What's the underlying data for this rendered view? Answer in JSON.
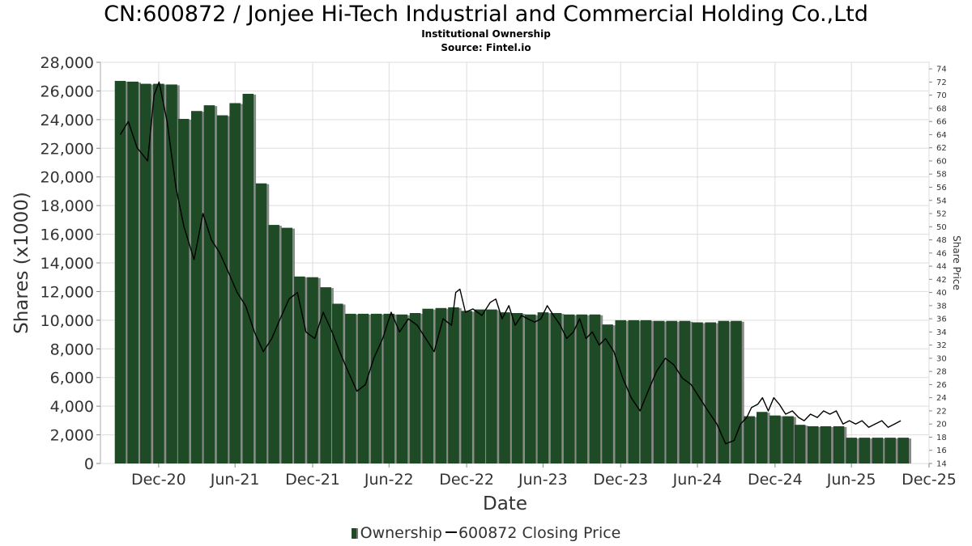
{
  "chart_data": {
    "type": "bar",
    "title": "CN:600872 / Jonjee Hi-Tech Industrial and Commercial Holding Co.,Ltd",
    "subtitle": "Institutional Ownership",
    "source": "Source: Fintel.io",
    "xlabel": "Date",
    "ylabel": "Shares (x1000)",
    "y2label": "Share Price",
    "ylim": [
      0,
      28000
    ],
    "y2lim": [
      14,
      75
    ],
    "xlim": [
      "2020-08-15",
      "2025-12-31"
    ],
    "grid": true,
    "legend_position": "bottom-center",
    "x_ticks": [
      {
        "date": "2020-12-31",
        "label": "Dec-20"
      },
      {
        "date": "2021-06-30",
        "label": "Jun-21"
      },
      {
        "date": "2021-12-31",
        "label": "Dec-21"
      },
      {
        "date": "2022-06-30",
        "label": "Jun-22"
      },
      {
        "date": "2022-12-31",
        "label": "Dec-22"
      },
      {
        "date": "2023-06-30",
        "label": "Jun-23"
      },
      {
        "date": "2023-12-31",
        "label": "Dec-23"
      },
      {
        "date": "2024-06-30",
        "label": "Jun-24"
      },
      {
        "date": "2024-12-31",
        "label": "Dec-24"
      },
      {
        "date": "2025-06-30",
        "label": "Jun-25"
      },
      {
        "date": "2025-12-31",
        "label": "Dec-25"
      }
    ],
    "y_ticks": [
      "0",
      "2,000",
      "4,000",
      "6,000",
      "8,000",
      "10,000",
      "12,000",
      "14,000",
      "16,000",
      "18,000",
      "20,000",
      "22,000",
      "24,000",
      "26,000",
      "28,000"
    ],
    "y_tick_values": [
      0,
      2000,
      4000,
      6000,
      8000,
      10000,
      12000,
      14000,
      16000,
      18000,
      20000,
      22000,
      24000,
      26000,
      28000
    ],
    "y2_ticks": [
      14,
      16,
      18,
      20,
      22,
      24,
      26,
      28,
      30,
      32,
      34,
      36,
      38,
      40,
      42,
      44,
      46,
      48,
      50,
      52,
      54,
      56,
      58,
      60,
      62,
      64,
      66,
      68,
      70,
      72,
      74
    ],
    "series": [
      {
        "name": "Ownership",
        "color": "#1e4a26",
        "bar_width_days": 26,
        "points": [
          [
            "2020-10-01",
            26700
          ],
          [
            "2020-10-31",
            26650
          ],
          [
            "2020-11-30",
            26500
          ],
          [
            "2020-12-31",
            26500
          ],
          [
            "2021-01-31",
            26450
          ],
          [
            "2021-02-28",
            24050
          ],
          [
            "2021-03-31",
            24600
          ],
          [
            "2021-04-30",
            25000
          ],
          [
            "2021-05-31",
            24300
          ],
          [
            "2021-06-30",
            25150
          ],
          [
            "2021-07-31",
            25800
          ],
          [
            "2021-08-31",
            19550
          ],
          [
            "2021-09-30",
            16650
          ],
          [
            "2021-10-31",
            16450
          ],
          [
            "2021-11-30",
            13050
          ],
          [
            "2021-12-31",
            13000
          ],
          [
            "2022-01-31",
            12300
          ],
          [
            "2022-02-28",
            11150
          ],
          [
            "2022-03-31",
            10450
          ],
          [
            "2022-04-30",
            10450
          ],
          [
            "2022-05-31",
            10450
          ],
          [
            "2022-06-30",
            10450
          ],
          [
            "2022-07-31",
            10400
          ],
          [
            "2022-08-31",
            10500
          ],
          [
            "2022-09-30",
            10800
          ],
          [
            "2022-10-31",
            10850
          ],
          [
            "2022-11-30",
            10900
          ],
          [
            "2022-12-31",
            10650
          ],
          [
            "2023-01-31",
            10750
          ],
          [
            "2023-02-28",
            10750
          ],
          [
            "2023-03-31",
            10550
          ],
          [
            "2023-04-30",
            10500
          ],
          [
            "2023-05-31",
            10400
          ],
          [
            "2023-06-30",
            10550
          ],
          [
            "2023-07-31",
            10500
          ],
          [
            "2023-08-31",
            10400
          ],
          [
            "2023-09-30",
            10400
          ],
          [
            "2023-10-31",
            10400
          ],
          [
            "2023-11-30",
            9700
          ],
          [
            "2023-12-31",
            10000
          ],
          [
            "2024-01-31",
            10000
          ],
          [
            "2024-02-29",
            10000
          ],
          [
            "2024-03-31",
            9950
          ],
          [
            "2024-04-30",
            9950
          ],
          [
            "2024-05-31",
            9950
          ],
          [
            "2024-06-30",
            9850
          ],
          [
            "2024-07-31",
            9850
          ],
          [
            "2024-08-31",
            9950
          ],
          [
            "2024-09-30",
            9950
          ],
          [
            "2024-10-31",
            3300
          ],
          [
            "2024-11-30",
            3600
          ],
          [
            "2024-12-31",
            3350
          ],
          [
            "2025-01-31",
            3300
          ],
          [
            "2025-02-28",
            2700
          ],
          [
            "2025-03-31",
            2600
          ],
          [
            "2025-04-30",
            2600
          ],
          [
            "2025-05-31",
            2600
          ],
          [
            "2025-06-30",
            1800
          ],
          [
            "2025-07-31",
            1800
          ],
          [
            "2025-08-31",
            1800
          ],
          [
            "2025-09-30",
            1800
          ],
          [
            "2025-10-31",
            1800
          ]
        ]
      },
      {
        "name": "600872 Closing Price",
        "color": "#000000",
        "axis": "right",
        "points": [
          [
            "2020-10-01",
            64
          ],
          [
            "2020-10-20",
            66
          ],
          [
            "2020-11-10",
            62
          ],
          [
            "2020-12-05",
            60
          ],
          [
            "2020-12-20",
            70
          ],
          [
            "2021-01-01",
            72
          ],
          [
            "2021-01-20",
            66
          ],
          [
            "2021-02-10",
            56
          ],
          [
            "2021-03-01",
            50
          ],
          [
            "2021-03-25",
            45
          ],
          [
            "2021-04-15",
            52
          ],
          [
            "2021-05-05",
            48
          ],
          [
            "2021-05-25",
            46
          ],
          [
            "2021-06-15",
            43
          ],
          [
            "2021-07-05",
            40
          ],
          [
            "2021-07-25",
            38
          ],
          [
            "2021-08-15",
            34
          ],
          [
            "2021-09-05",
            31
          ],
          [
            "2021-09-25",
            33
          ],
          [
            "2021-10-15",
            36
          ],
          [
            "2021-11-05",
            39
          ],
          [
            "2021-11-25",
            40
          ],
          [
            "2021-12-15",
            34
          ],
          [
            "2022-01-05",
            33
          ],
          [
            "2022-01-25",
            37
          ],
          [
            "2022-02-15",
            34
          ],
          [
            "2022-03-05",
            31
          ],
          [
            "2022-03-25",
            28
          ],
          [
            "2022-04-15",
            25
          ],
          [
            "2022-05-05",
            26
          ],
          [
            "2022-05-25",
            30
          ],
          [
            "2022-06-15",
            33
          ],
          [
            "2022-07-05",
            37
          ],
          [
            "2022-07-25",
            34
          ],
          [
            "2022-08-15",
            36
          ],
          [
            "2022-09-05",
            35
          ],
          [
            "2022-09-25",
            33
          ],
          [
            "2022-10-15",
            31
          ],
          [
            "2022-11-05",
            36
          ],
          [
            "2022-11-25",
            35
          ],
          [
            "2022-12-05",
            40
          ],
          [
            "2022-12-15",
            40.5
          ],
          [
            "2022-12-28",
            37
          ],
          [
            "2023-01-15",
            37.5
          ],
          [
            "2023-02-05",
            36.5
          ],
          [
            "2023-02-25",
            38.5
          ],
          [
            "2023-03-10",
            39
          ],
          [
            "2023-03-25",
            36
          ],
          [
            "2023-04-10",
            38
          ],
          [
            "2023-04-25",
            35
          ],
          [
            "2023-05-10",
            36.5
          ],
          [
            "2023-05-25",
            36
          ],
          [
            "2023-06-10",
            35.5
          ],
          [
            "2023-06-25",
            36
          ],
          [
            "2023-07-10",
            38
          ],
          [
            "2023-07-25",
            36.5
          ],
          [
            "2023-08-10",
            35
          ],
          [
            "2023-08-25",
            33
          ],
          [
            "2023-09-10",
            34
          ],
          [
            "2023-09-25",
            36
          ],
          [
            "2023-10-10",
            33
          ],
          [
            "2023-10-25",
            34
          ],
          [
            "2023-11-10",
            32
          ],
          [
            "2023-11-25",
            33
          ],
          [
            "2023-12-15",
            31
          ],
          [
            "2024-01-05",
            27
          ],
          [
            "2024-01-25",
            24
          ],
          [
            "2024-02-15",
            22
          ],
          [
            "2024-03-05",
            25
          ],
          [
            "2024-03-25",
            28
          ],
          [
            "2024-04-15",
            30
          ],
          [
            "2024-05-05",
            29
          ],
          [
            "2024-05-25",
            27
          ],
          [
            "2024-06-15",
            26
          ],
          [
            "2024-07-05",
            24
          ],
          [
            "2024-07-25",
            22
          ],
          [
            "2024-08-15",
            20
          ],
          [
            "2024-09-05",
            17
          ],
          [
            "2024-09-25",
            17.5
          ],
          [
            "2024-10-10",
            20
          ],
          [
            "2024-10-25",
            21
          ],
          [
            "2024-11-05",
            22.5
          ],
          [
            "2024-11-20",
            23
          ],
          [
            "2024-12-01",
            24
          ],
          [
            "2024-12-15",
            22
          ],
          [
            "2024-12-28",
            24
          ],
          [
            "2025-01-10",
            23
          ],
          [
            "2025-01-25",
            21.5
          ],
          [
            "2025-02-10",
            22
          ],
          [
            "2025-02-25",
            21
          ],
          [
            "2025-03-10",
            20.5
          ],
          [
            "2025-03-25",
            21.5
          ],
          [
            "2025-04-10",
            21
          ],
          [
            "2025-04-25",
            22
          ],
          [
            "2025-05-10",
            21.5
          ],
          [
            "2025-05-25",
            22
          ],
          [
            "2025-06-10",
            20
          ],
          [
            "2025-06-25",
            20.5
          ],
          [
            "2025-07-10",
            20
          ],
          [
            "2025-07-25",
            20.5
          ],
          [
            "2025-08-10",
            19.5
          ],
          [
            "2025-08-25",
            20
          ],
          [
            "2025-09-10",
            20.5
          ],
          [
            "2025-09-25",
            19.5
          ],
          [
            "2025-10-10",
            20
          ],
          [
            "2025-10-25",
            20.5
          ]
        ]
      }
    ]
  },
  "legend": {
    "ownership_label": "Ownership",
    "price_label": "600872 Closing Price"
  }
}
